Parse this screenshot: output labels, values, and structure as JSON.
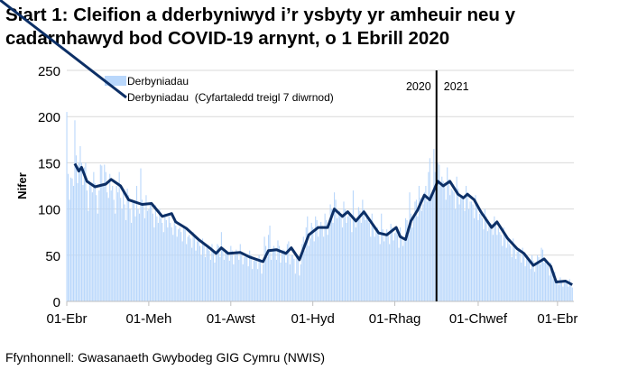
{
  "title": "Siart 1: Cleifion a dderbyniwyd i’r ysbyty yr amheuir neu y cadarnhawyd bod COVID-19 arnynt, o 1 Ebrill 2020",
  "source": "Ffynhonnell: Gwasanaeth Gwybodeg GIG Cymru (NWIS)",
  "chart_data": {
    "type": "bar+line",
    "ylabel": "Nifer",
    "ylim": [
      0,
      250
    ],
    "yticks": [
      0,
      50,
      100,
      150,
      200,
      250
    ],
    "grid": true,
    "legend_placement": "top-left",
    "xstart": "2020-04-01",
    "xend": "2021-04-12",
    "xticks": [
      {
        "date": "2020-04-01",
        "label": "01-Ebr"
      },
      {
        "date": "2020-06-01",
        "label": "01-Meh"
      },
      {
        "date": "2020-08-01",
        "label": "01-Awst"
      },
      {
        "date": "2020-10-01",
        "label": "01-Hyd"
      },
      {
        "date": "2020-12-01",
        "label": "01-Rhag"
      },
      {
        "date": "2021-02-01",
        "label": "01-Chwef"
      },
      {
        "date": "2021-04-01",
        "label": "01-Ebr"
      }
    ],
    "year_divider": {
      "date": "2021-01-01",
      "left_label": "2020",
      "right_label": "2021"
    },
    "colors": {
      "bars": "#b9d7fb",
      "line": "#0c2f66",
      "divider": "#000000",
      "grid": "#d9d9d9"
    },
    "series": [
      {
        "name": "Derbyniadau",
        "kind": "bar",
        "start_date": "2020-04-01",
        "values": [
          205,
          138,
          110,
          134,
          133,
          125,
          196,
          158,
          128,
          150,
          168,
          150,
          126,
          145,
          150,
          120,
          98,
          130,
          125,
          118,
          140,
          128,
          115,
          95,
          120,
          148,
          147,
          125,
          148,
          140,
          118,
          112,
          138,
          120,
          125,
          110,
          95,
          125,
          118,
          140,
          112,
          100,
          118,
          105,
          88,
          122,
          115,
          100,
          85,
          110,
          108,
          92,
          125,
          100,
          95,
          144,
          110,
          105,
          90,
          115,
          98,
          100,
          105,
          108,
          95,
          80,
          104,
          92,
          85,
          100,
          90,
          85,
          75,
          95,
          88,
          80,
          92,
          85,
          80,
          72,
          90,
          82,
          70,
          78,
          80,
          75,
          65,
          82,
          78,
          62,
          70,
          72,
          68,
          58,
          75,
          70,
          55,
          65,
          66,
          60,
          50,
          68,
          62,
          48,
          58,
          58,
          55,
          45,
          62,
          56,
          42,
          50,
          62,
          60,
          48,
          75,
          58,
          45,
          55,
          55,
          52,
          44,
          60,
          55,
          40,
          50,
          56,
          54,
          45,
          62,
          52,
          40,
          48,
          50,
          48,
          38,
          55,
          50,
          35,
          44,
          46,
          44,
          35,
          50,
          46,
          30,
          40,
          70,
          60,
          48,
          72,
          82,
          45,
          55,
          60,
          58,
          45,
          66,
          60,
          42,
          52,
          56,
          55,
          42,
          62,
          65,
          40,
          50,
          50,
          46,
          30,
          50,
          44,
          28,
          40,
          62,
          70,
          55,
          80,
          92,
          60,
          68,
          85,
          80,
          65,
          92,
          88,
          70,
          78,
          86,
          82,
          70,
          95,
          88,
          72,
          80,
          105,
          100,
          85,
          118,
          110,
          90,
          98,
          98,
          95,
          80,
          108,
          100,
          85,
          92,
          95,
          90,
          75,
          120,
          92,
          80,
          88,
          102,
          98,
          85,
          110,
          100,
          88,
          95,
          88,
          85,
          70,
          95,
          84,
          70,
          78,
          80,
          76,
          62,
          95,
          78,
          65,
          72,
          78,
          75,
          62,
          84,
          80,
          66,
          74,
          76,
          72,
          58,
          80,
          72,
          60,
          68,
          90,
          88,
          72,
          118,
          95,
          80,
          92,
          108,
          110,
          92,
          125,
          112,
          98,
          105,
          118,
          125,
          108,
          140,
          155,
          110,
          120,
          165,
          140,
          80,
          150,
          148,
          125,
          135,
          130,
          128,
          110,
          145,
          132,
          115,
          122,
          120,
          118,
          100,
          135,
          122,
          105,
          112,
          115,
          112,
          98,
          125,
          118,
          100,
          108,
          108,
          105,
          90,
          115,
          102,
          88,
          95,
          95,
          90,
          78,
          100,
          92,
          76,
          84,
          85,
          84,
          72,
          92,
          86,
          72,
          80,
          75,
          72,
          60,
          80,
          72,
          58,
          66,
          62,
          60,
          48,
          68,
          60,
          46,
          54,
          55,
          52,
          42,
          58,
          52,
          38,
          46,
          48,
          45,
          35,
          50,
          44,
          32,
          40,
          50,
          48,
          40,
          58,
          56,
          42,
          46,
          40,
          38,
          28,
          42,
          36,
          24,
          32,
          24,
          22,
          18,
          26,
          22,
          16,
          20,
          22,
          20,
          16,
          24,
          18,
          15
        ]
      },
      {
        "name": "Derbyniadau  (Cyfartaledd treigl 7 diwrnod)",
        "kind": "line",
        "points": [
          [
            "2020-04-07",
            149
          ],
          [
            "2020-04-10",
            141
          ],
          [
            "2020-04-12",
            145
          ],
          [
            "2020-04-16",
            130
          ],
          [
            "2020-04-22",
            124
          ],
          [
            "2020-04-30",
            127
          ],
          [
            "2020-05-04",
            132
          ],
          [
            "2020-05-11",
            125
          ],
          [
            "2020-05-17",
            110
          ],
          [
            "2020-05-27",
            105
          ],
          [
            "2020-06-03",
            106
          ],
          [
            "2020-06-11",
            92
          ],
          [
            "2020-06-18",
            95
          ],
          [
            "2020-06-21",
            86
          ],
          [
            "2020-06-29",
            79
          ],
          [
            "2020-07-08",
            67
          ],
          [
            "2020-07-17",
            57
          ],
          [
            "2020-07-21",
            52
          ],
          [
            "2020-07-25",
            58
          ],
          [
            "2020-07-30",
            52
          ],
          [
            "2020-08-08",
            53
          ],
          [
            "2020-08-15",
            48
          ],
          [
            "2020-08-25",
            43
          ],
          [
            "2020-08-29",
            55
          ],
          [
            "2020-09-04",
            56
          ],
          [
            "2020-09-11",
            52
          ],
          [
            "2020-09-15",
            58
          ],
          [
            "2020-09-21",
            45
          ],
          [
            "2020-09-28",
            72
          ],
          [
            "2020-10-05",
            80
          ],
          [
            "2020-10-12",
            80
          ],
          [
            "2020-10-17",
            100
          ],
          [
            "2020-10-23",
            92
          ],
          [
            "2020-10-27",
            97
          ],
          [
            "2020-11-02",
            87
          ],
          [
            "2020-11-08",
            97
          ],
          [
            "2020-11-19",
            74
          ],
          [
            "2020-11-25",
            72
          ],
          [
            "2020-12-02",
            80
          ],
          [
            "2020-12-05",
            70
          ],
          [
            "2020-12-09",
            67
          ],
          [
            "2020-12-13",
            87
          ],
          [
            "2020-12-18",
            99
          ],
          [
            "2020-12-23",
            115
          ],
          [
            "2020-12-27",
            110
          ],
          [
            "2021-01-02",
            130
          ],
          [
            "2021-01-06",
            125
          ],
          [
            "2021-01-11",
            130
          ],
          [
            "2021-01-17",
            116
          ],
          [
            "2021-01-21",
            112
          ],
          [
            "2021-01-24",
            116
          ],
          [
            "2021-01-29",
            110
          ],
          [
            "2021-02-03",
            97
          ],
          [
            "2021-02-11",
            80
          ],
          [
            "2021-02-15",
            86
          ],
          [
            "2021-02-23",
            68
          ],
          [
            "2021-03-02",
            57
          ],
          [
            "2021-03-07",
            52
          ],
          [
            "2021-03-14",
            39
          ],
          [
            "2021-03-22",
            46
          ],
          [
            "2021-03-27",
            38
          ],
          [
            "2021-03-31",
            21
          ],
          [
            "2021-04-07",
            22
          ],
          [
            "2021-04-12",
            18
          ]
        ]
      }
    ]
  }
}
